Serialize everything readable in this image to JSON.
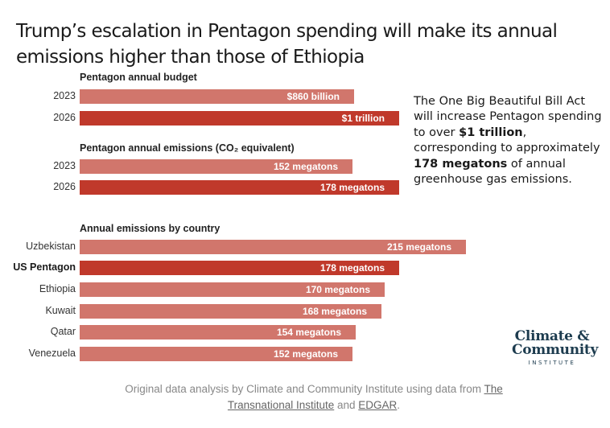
{
  "title": "Trump’s escalation in Pentagon spending will make its annual emissions higher than those of Ethiopia",
  "note": {
    "part1": "The One Big Beautiful Bill Act will increase Pentagon spending to over ",
    "bold1": "$1 trillion",
    "part2": ", corresponding to approximately ",
    "bold2": "178 megatons",
    "part3": " of annual greenhouse gas emissions."
  },
  "logo": {
    "line1": "Climate &",
    "line2": "Community",
    "line3": "INSTITUTE"
  },
  "footer": {
    "text1": "Original data analysis by Climate and Community Institute using data from ",
    "link1": "The Transnational Institute",
    "text2": " and ",
    "link2": "EDGAR",
    "text3": "."
  },
  "colors": {
    "light": "#d1766c",
    "dark": "#c0392b"
  },
  "chart_data": [
    {
      "type": "bar",
      "orientation": "horizontal",
      "title": "Pentagon annual budget",
      "categories": [
        "2023",
        "2026"
      ],
      "values": [
        860,
        1000
      ],
      "unit": "billion USD",
      "labels": [
        "$860 billion",
        "$1 trillion"
      ],
      "highlight": [
        false,
        true
      ]
    },
    {
      "type": "bar",
      "orientation": "horizontal",
      "title": "Pentagon annual emissions (CO₂ equivalent)",
      "categories": [
        "2023",
        "2026"
      ],
      "values": [
        152,
        178
      ],
      "unit": "megatons",
      "labels": [
        "152 megatons",
        "178 megatons"
      ],
      "highlight": [
        false,
        true
      ]
    },
    {
      "type": "bar",
      "orientation": "horizontal",
      "title": "Annual emissions by country",
      "categories": [
        "Uzbekistan",
        "US Pentagon",
        "Ethiopia",
        "Kuwait",
        "Qatar",
        "Venezuela"
      ],
      "values": [
        215,
        178,
        170,
        168,
        154,
        152
      ],
      "unit": "megatons",
      "labels": [
        "215 megatons",
        "178 megatons",
        "170 megatons",
        "168 megatons",
        "154 megatons",
        "152 megatons"
      ],
      "highlight": [
        false,
        true,
        false,
        false,
        false,
        false
      ]
    }
  ]
}
